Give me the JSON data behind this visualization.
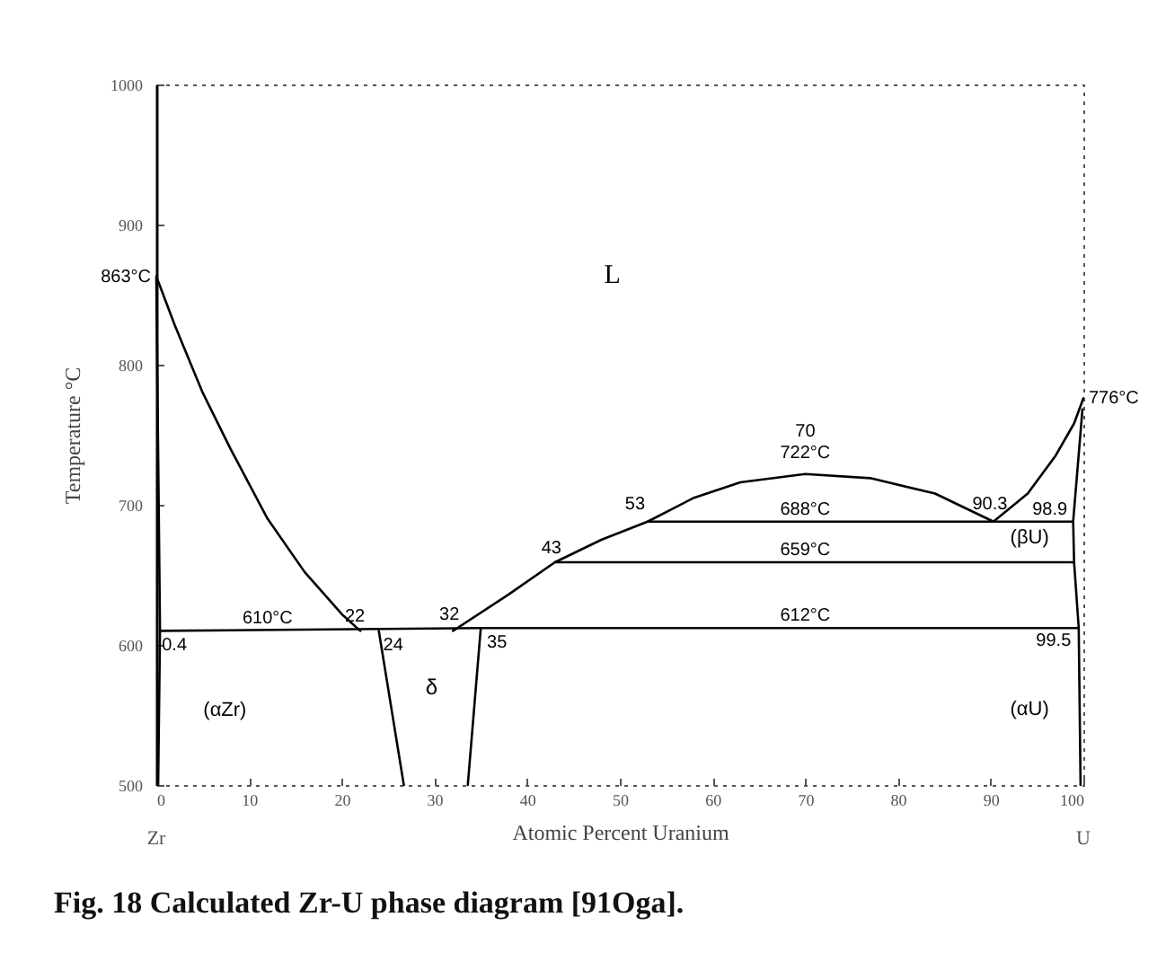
{
  "chart_data": {
    "type": "line",
    "xlabel": "Atomic Percent Uranium",
    "ylabel": "Temperature °C",
    "xlim": [
      0,
      100
    ],
    "xticks": [
      0,
      10,
      20,
      30,
      40,
      50,
      60,
      70,
      80,
      90,
      100
    ],
    "ylim": [
      500,
      1000
    ],
    "yticks": [
      500,
      600,
      700,
      800,
      900,
      1000
    ],
    "grid": false,
    "marker": "none",
    "line_style": "solid",
    "series": [
      {
        "color": "#000000",
        "x": [
          22,
          20,
          16,
          12,
          8,
          5,
          2,
          0,
          0.4,
          0.2
        ],
        "values": [
          610,
          622,
          652,
          690,
          740,
          780,
          828,
          863,
          610,
          500
        ]
      },
      {
        "color": "#000000",
        "x": [
          0.4,
          35,
          99.5
        ],
        "values": [
          610,
          612,
          612
        ]
      },
      {
        "color": "#000000",
        "x": [
          24,
          26.7
        ],
        "values": [
          610,
          500
        ]
      },
      {
        "color": "#000000",
        "x": [
          35,
          33.6
        ],
        "values": [
          612,
          500
        ]
      },
      {
        "color": "#000000",
        "x": [
          32,
          38,
          43,
          48,
          53,
          58,
          63,
          70,
          77,
          84,
          90.3,
          94,
          97,
          99,
          100
        ],
        "values": [
          610,
          636,
          659,
          675,
          688,
          705,
          716,
          722,
          719,
          708,
          688,
          708,
          735,
          758,
          776
        ]
      },
      {
        "color": "#000000",
        "x": [
          99.9,
          98.9,
          99,
          99.5,
          99.7
        ],
        "values": [
          768,
          688,
          659,
          612,
          500
        ]
      },
      {
        "color": "#000000",
        "x": [
          43,
          99
        ],
        "values": [
          659,
          659
        ]
      },
      {
        "color": "#000000",
        "x": [
          53,
          98.9
        ],
        "values": [
          688,
          688
        ]
      }
    ],
    "annotations": [
      {
        "text": "863°C",
        "x": 0,
        "y": 863
      },
      {
        "text": "776°C",
        "x": 100,
        "y": 776
      },
      {
        "text": "610°C",
        "x": 12,
        "y": 610
      },
      {
        "text": "22",
        "x": 22,
        "y": 610
      },
      {
        "text": "24",
        "x": 24,
        "y": 610
      },
      {
        "text": "32",
        "x": 32,
        "y": 610
      },
      {
        "text": "35",
        "x": 35,
        "y": 612
      },
      {
        "text": "0.4",
        "x": 0.4,
        "y": 610
      },
      {
        "text": "43",
        "x": 43,
        "y": 659
      },
      {
        "text": "53",
        "x": 53,
        "y": 688
      },
      {
        "text": "70",
        "x": 70,
        "y": 722
      },
      {
        "text": "722°C",
        "x": 70,
        "y": 722
      },
      {
        "text": "90.3",
        "x": 90.3,
        "y": 688
      },
      {
        "text": "98.9",
        "x": 98.9,
        "y": 688
      },
      {
        "text": "688°C",
        "x": 70,
        "y": 688
      },
      {
        "text": "659°C",
        "x": 70,
        "y": 659
      },
      {
        "text": "612°C",
        "x": 70,
        "y": 612
      },
      {
        "text": "99.5",
        "x": 99.5,
        "y": 612
      },
      "L",
      "δ",
      "(αZr)",
      "(βU)",
      "(αU)",
      "Zr",
      "U",
      "Fig. 18 Calculated Zr-U phase diagram [91Oga]."
    ]
  }
}
